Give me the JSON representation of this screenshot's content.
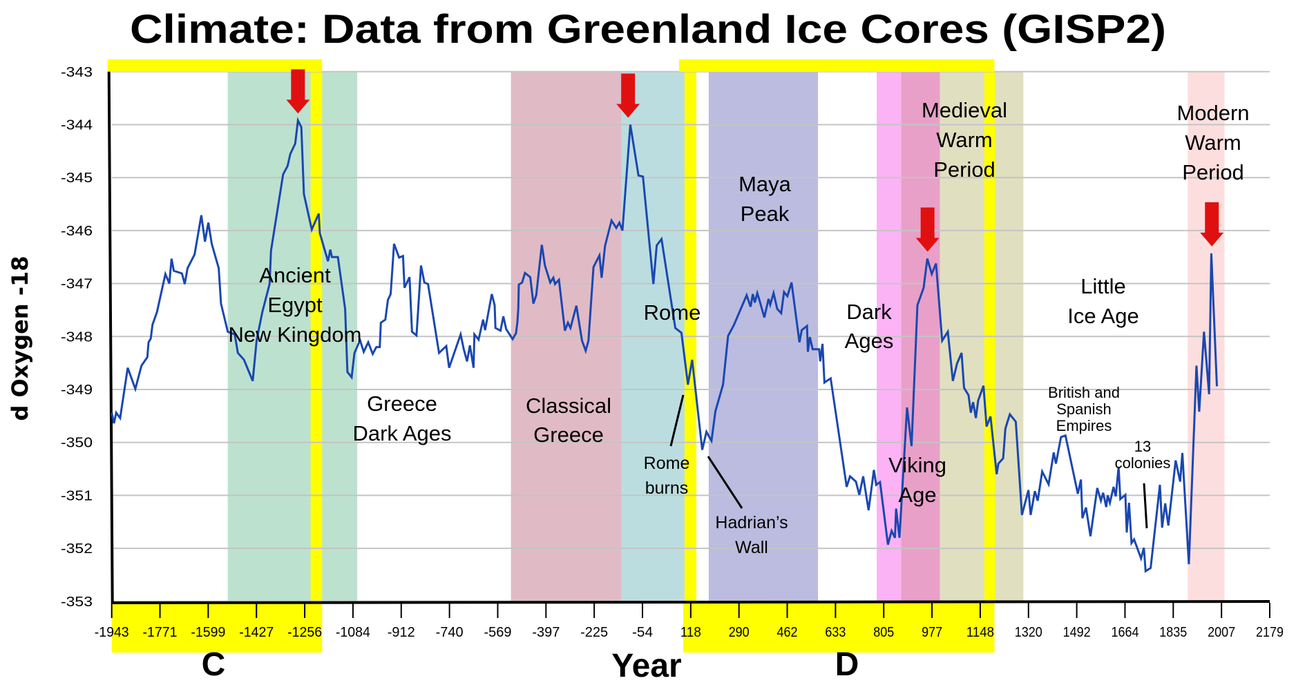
{
  "chart_data": {
    "type": "line",
    "title": "Climate: Data from Greenland Ice Cores (GISP2)",
    "xlabel": "Year",
    "ylabel": "d Oxygen -18",
    "xlim": [
      -1943,
      2179
    ],
    "ylim": [
      -353,
      -343
    ],
    "grid": true,
    "x_ticks": [
      "-1943",
      "-1771",
      "-1599",
      "-1427",
      "-1256",
      "-1084",
      "-912",
      "-740",
      "-569",
      "-397",
      "-225",
      "-54",
      "118",
      "290",
      "462",
      "633",
      "805",
      "977",
      "1148",
      "1320",
      "1492",
      "1664",
      "1835",
      "2007",
      "2179"
    ],
    "y_ticks": [
      "-343",
      "-344",
      "-345",
      "-346",
      "-347",
      "-348",
      "-349",
      "-350",
      "-351",
      "-352",
      "-353"
    ],
    "section_markers": [
      "C",
      "D"
    ],
    "colors": {
      "line": "#1a47b0",
      "highlight": "#ffff00",
      "arrow": "#e01010"
    },
    "series": [
      {
        "name": "d Oxygen -18",
        "x": [
          -1943,
          -1935,
          -1927,
          -1913,
          -1886,
          -1859,
          -1837,
          -1816,
          -1812,
          -1804,
          -1798,
          -1782,
          -1752,
          -1738,
          -1730,
          -1722,
          -1693,
          -1683,
          -1673,
          -1648,
          -1624,
          -1611,
          -1599,
          -1587,
          -1562,
          -1554,
          -1530,
          -1505,
          -1494,
          -1472,
          -1441,
          -1427,
          -1407,
          -1381,
          -1376,
          -1333,
          -1317,
          -1307,
          -1290,
          -1280,
          -1268,
          -1259,
          -1231,
          -1206,
          -1202,
          -1173,
          -1165,
          -1159,
          -1138,
          -1112,
          -1104,
          -1089,
          -1079,
          -1059,
          -1046,
          -1030,
          -1014,
          -1001,
          -989,
          -985,
          -969,
          -960,
          -950,
          -938,
          -920,
          -906,
          -901,
          -883,
          -874,
          -858,
          -842,
          -830,
          -817,
          -778,
          -752,
          -742,
          -701,
          -690,
          -678,
          -668,
          -655,
          -652,
          -637,
          -621,
          -614,
          -590,
          -580,
          -577,
          -559,
          -549,
          -539,
          -516,
          -504,
          -499,
          -496,
          -494,
          -482,
          -472,
          -453,
          -442,
          -432,
          -412,
          -401,
          -382,
          -371,
          -365,
          -351,
          -330,
          -319,
          -310,
          -289,
          -269,
          -256,
          -246,
          -228,
          -207,
          -199,
          -187,
          -164,
          -147,
          -136,
          -125,
          -97,
          -68,
          -52,
          -15,
          -3,
          14,
          63,
          85,
          108,
          123,
          159,
          174,
          192,
          206,
          233,
          251,
          272,
          317,
          331,
          339,
          346,
          355,
          364,
          380,
          395,
          401,
          413,
          426,
          440,
          450,
          462,
          477,
          505,
          513,
          532,
          535,
          542,
          552,
          575,
          579,
          587,
          594,
          616,
          673,
          685,
          706,
          718,
          732,
          751,
          770,
          778,
          792,
          820,
          833,
          845,
          849,
          861,
          888,
          904,
          925,
          947,
          960,
          976,
          991,
          1013,
          1033,
          1051,
          1066,
          1082,
          1091,
          1107,
          1115,
          1123,
          1133,
          1141,
          1160,
          1171,
          1185,
          1207,
          1213,
          1230,
          1238,
          1246,
          1254,
          1275,
          1297,
          1320,
          1328,
          1343,
          1353,
          1369,
          1392,
          1410,
          1418,
          1436,
          1452,
          1496,
          1507,
          1512,
          1525,
          1541,
          1565,
          1578,
          1586,
          1597,
          1602,
          1610,
          1623,
          1631,
          1641,
          1647,
          1665,
          1670,
          1678,
          1687,
          1696,
          1721,
          1731,
          1737,
          1755,
          1788,
          1796,
          1807,
          1818,
          1844,
          1860,
          1868,
          1891,
          1918,
          1928,
          1945,
          1963,
          1971,
          1991
        ],
        "y": [
          -349.44,
          -349.64,
          -349.44,
          -349.54,
          -348.59,
          -348.99,
          -348.55,
          -348.39,
          -348.11,
          -348.04,
          -347.78,
          -347.54,
          -346.82,
          -347.0,
          -346.53,
          -346.76,
          -346.81,
          -347.01,
          -346.71,
          -346.45,
          -345.71,
          -346.21,
          -345.85,
          -346.25,
          -346.71,
          -347.38,
          -347.91,
          -347.96,
          -348.31,
          -348.44,
          -348.84,
          -348.07,
          -347.54,
          -347.01,
          -346.38,
          -344.94,
          -344.78,
          -344.55,
          -344.36,
          -343.92,
          -344.05,
          -345.31,
          -345.98,
          -345.68,
          -346.05,
          -346.58,
          -346.36,
          -346.5,
          -346.5,
          -347.48,
          -348.67,
          -348.77,
          -348.31,
          -348.07,
          -348.29,
          -348.11,
          -348.33,
          -348.2,
          -348.2,
          -347.74,
          -347.68,
          -347.31,
          -347.2,
          -346.25,
          -346.51,
          -346.48,
          -347.08,
          -346.88,
          -347.91,
          -347.98,
          -346.66,
          -346.98,
          -347.01,
          -348.31,
          -348.18,
          -348.59,
          -347.96,
          -348.24,
          -348.47,
          -348.17,
          -348.59,
          -347.96,
          -348.06,
          -347.68,
          -347.88,
          -347.2,
          -347.41,
          -347.84,
          -347.89,
          -347.62,
          -347.86,
          -348.05,
          -347.94,
          -347.74,
          -347.48,
          -347.02,
          -346.98,
          -346.8,
          -346.88,
          -347.38,
          -347.22,
          -346.27,
          -346.66,
          -346.98,
          -346.89,
          -347.01,
          -346.93,
          -347.89,
          -347.74,
          -347.84,
          -347.42,
          -348.08,
          -348.27,
          -348.08,
          -346.69,
          -346.47,
          -346.89,
          -346.29,
          -345.81,
          -345.95,
          -345.85,
          -346.0,
          -344.0,
          -344.96,
          -344.98,
          -347.01,
          -346.28,
          -346.16,
          -347.84,
          -347.93,
          -348.91,
          -348.44,
          -350.14,
          -349.8,
          -349.97,
          -349.41,
          -348.91,
          -347.99,
          -347.78,
          -347.22,
          -347.44,
          -347.2,
          -347.36,
          -347.18,
          -347.34,
          -347.64,
          -347.29,
          -347.4,
          -347.18,
          -347.48,
          -347.56,
          -347.16,
          -347.24,
          -346.98,
          -348.11,
          -347.88,
          -347.8,
          -348.29,
          -348.01,
          -348.24,
          -348.24,
          -348.47,
          -348.14,
          -348.87,
          -348.79,
          -350.84,
          -350.64,
          -350.74,
          -350.99,
          -350.64,
          -351.28,
          -350.52,
          -350.8,
          -350.75,
          -351.93,
          -351.67,
          -351.8,
          -351.25,
          -351.8,
          -349.34,
          -350.07,
          -347.41,
          -347.08,
          -346.53,
          -346.82,
          -346.62,
          -348.08,
          -347.91,
          -348.84,
          -348.51,
          -348.31,
          -348.97,
          -349.11,
          -349.44,
          -349.24,
          -349.54,
          -349.21,
          -348.93,
          -349.7,
          -349.51,
          -350.6,
          -350.4,
          -350.3,
          -349.74,
          -349.6,
          -349.47,
          -349.61,
          -351.37,
          -350.9,
          -351.37,
          -350.92,
          -351.1,
          -350.55,
          -350.79,
          -350.19,
          -350.4,
          -349.9,
          -349.87,
          -350.97,
          -350.7,
          -351.43,
          -351.23,
          -351.77,
          -350.86,
          -351.1,
          -350.95,
          -351.22,
          -351.0,
          -351.14,
          -350.84,
          -351.02,
          -350.46,
          -351.07,
          -350.99,
          -351.7,
          -351.14,
          -351.9,
          -351.83,
          -352.19,
          -351.99,
          -352.43,
          -352.37,
          -350.8,
          -351.61,
          -351.15,
          -351.57,
          -350.34,
          -350.74,
          -350.2,
          -352.3,
          -348.55,
          -349.42,
          -347.91,
          -349.09,
          -346.43,
          -348.94
        ]
      }
    ],
    "shaded_periods": [
      {
        "from": -1530,
        "to": -1069,
        "color": "#bde1cf"
      },
      {
        "from": -522,
        "to": -128,
        "color": "#e0bbc6"
      },
      {
        "from": -128,
        "to": 96,
        "color": "#bbdde0"
      },
      {
        "from": 182,
        "to": 571,
        "color": "#bcbce0"
      },
      {
        "from": 780,
        "to": 867,
        "color": "#fbb3f5"
      },
      {
        "from": 867,
        "to": 1005,
        "color": "#e8a0c8"
      },
      {
        "from": 1005,
        "to": 1302,
        "color": "#e0dfc0"
      },
      {
        "from": 1887,
        "to": 2018,
        "color": "#fddede"
      },
      {
        "from": -1235,
        "to": -1194,
        "color": "#ffff00"
      },
      {
        "from": 96,
        "to": 138,
        "color": "#ffff00"
      },
      {
        "from": 1163,
        "to": 1201,
        "color": "#ffff00"
      }
    ],
    "highlight_ranges": [
      {
        "label": "C",
        "from": -1943,
        "to": -1194
      },
      {
        "label": "D",
        "from": 91,
        "to": 1199
      }
    ],
    "peak_arrows": [
      {
        "x": -1280,
        "y": -343.92
      },
      {
        "x": -105,
        "y": -344.0
      },
      {
        "x": 961,
        "y": -346.53
      },
      {
        "x": 1973,
        "y": -346.43
      }
    ],
    "annotations": [
      {
        "lines": [
          "Ancient",
          "Egypt",
          "New Kingdom"
        ]
      },
      {
        "lines": [
          "Greece",
          "Dark Ages"
        ]
      },
      {
        "lines": [
          "Classical",
          "Greece"
        ]
      },
      {
        "lines": [
          "Rome"
        ]
      },
      {
        "lines": [
          "Rome",
          "burns"
        ]
      },
      {
        "lines": [
          "Hadrian’s",
          "Wall"
        ]
      },
      {
        "lines": [
          "Maya",
          "Peak"
        ]
      },
      {
        "lines": [
          "Dark",
          "Ages"
        ]
      },
      {
        "lines": [
          "Viking",
          "Age"
        ]
      },
      {
        "lines": [
          "Medieval",
          "Warm",
          "Period"
        ]
      },
      {
        "lines": [
          "Little",
          "Ice Age"
        ]
      },
      {
        "lines": [
          "British and",
          "Spanish",
          "Empires"
        ]
      },
      {
        "lines": [
          "13",
          "colonies"
        ]
      },
      {
        "lines": [
          "Modern",
          "Warm",
          "Period"
        ]
      }
    ]
  }
}
